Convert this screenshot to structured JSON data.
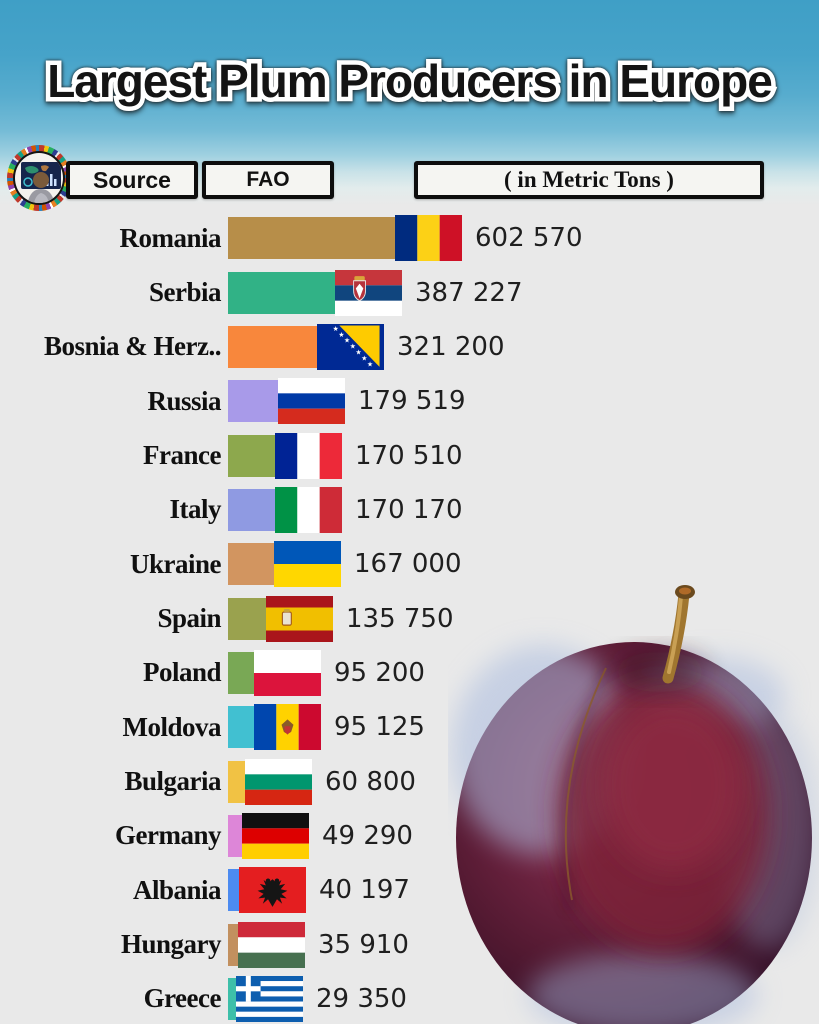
{
  "title": "Largest Plum Producers in Europe",
  "header": {
    "source_label": "Source",
    "source_value": "FAO",
    "unit_label": "( in Metric Tons )"
  },
  "logo": {
    "name": "world-flags-data-analyst-logo"
  },
  "chart_data": {
    "type": "bar",
    "orientation": "horizontal",
    "title": "Largest Plum Producers in Europe",
    "source": "FAO",
    "unit": "Metric Tons",
    "xlim": [
      0,
      602570
    ],
    "categories": [
      "Romania",
      "Serbia",
      "Bosnia & Herz..",
      "Russia",
      "France",
      "Italy",
      "Ukraine",
      "Spain",
      "Poland",
      "Moldova",
      "Bulgaria",
      "Germany",
      "Albania",
      "Hungary",
      "Greece"
    ],
    "values": [
      602570,
      387227,
      321200,
      179519,
      170510,
      170170,
      167000,
      135750,
      95200,
      95125,
      60800,
      49290,
      40197,
      35910,
      29350
    ],
    "value_labels": [
      "602 570",
      "387 227",
      "321 200",
      "179 519",
      "170 510",
      "170 170",
      "167 000",
      "135 750",
      "95 200",
      "95 125",
      "60 800",
      "49 290",
      "40 197",
      "35 910",
      "29 350"
    ],
    "bar_colors": [
      "#b78e49",
      "#31b286",
      "#f8873c",
      "#a89ae9",
      "#8da84d",
      "#8f9ae2",
      "#d29560",
      "#9aa24e",
      "#79a855",
      "#41c0d1",
      "#f1c244",
      "#dd86d8",
      "#4c8bf0",
      "#c2905f",
      "#3dbfa9"
    ],
    "flags": [
      "romania",
      "serbia",
      "bosnia",
      "russia",
      "france",
      "italy",
      "ukraine",
      "spain",
      "poland",
      "moldova",
      "bulgaria",
      "germany",
      "albania",
      "hungary",
      "greece"
    ]
  },
  "decor": {
    "plum_image": "plum-photo"
  },
  "colors": {
    "background_top": "#3f9fc6",
    "background_bottom": "#e9e9e9",
    "box_border": "#0d0d0d",
    "box_fill": "#f5f5f2",
    "title_fill": "#141414",
    "title_outline": "#ffffff"
  }
}
